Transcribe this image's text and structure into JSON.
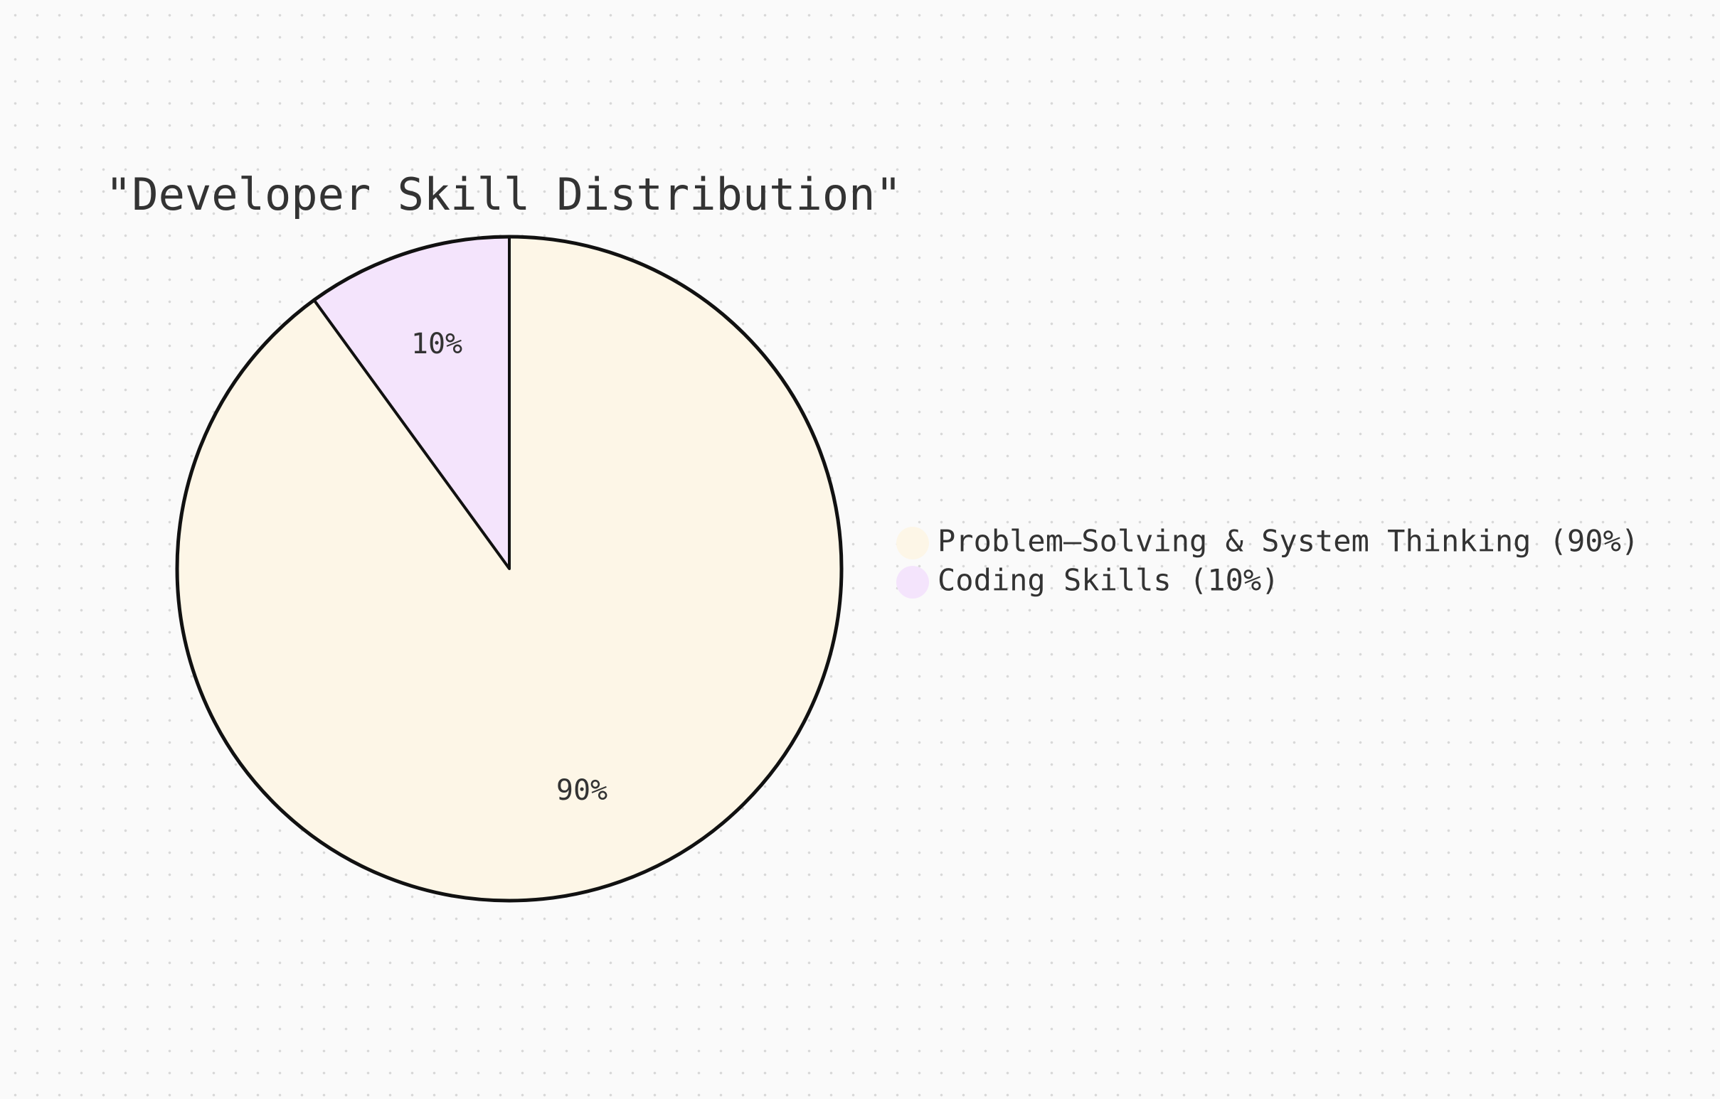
{
  "chart_data": {
    "type": "pie",
    "title": "\"Developer Skill Distribution\"",
    "slices": [
      {
        "label": "Coding Skills",
        "value": 10,
        "percent_label": "10%",
        "legend": "Coding Skills (10%)",
        "color": "#f4e4fc"
      },
      {
        "label": "Problem-Solving & System Thinking",
        "value": 90,
        "percent_label": "90%",
        "legend": "Problem–Solving & System Thinking (90%)",
        "color": "#fdf6e7"
      }
    ],
    "legend_order": [
      1,
      0
    ],
    "legend_position": "right",
    "start_angle": "top",
    "direction": "counterclockwise",
    "stroke_color": "#111111"
  }
}
